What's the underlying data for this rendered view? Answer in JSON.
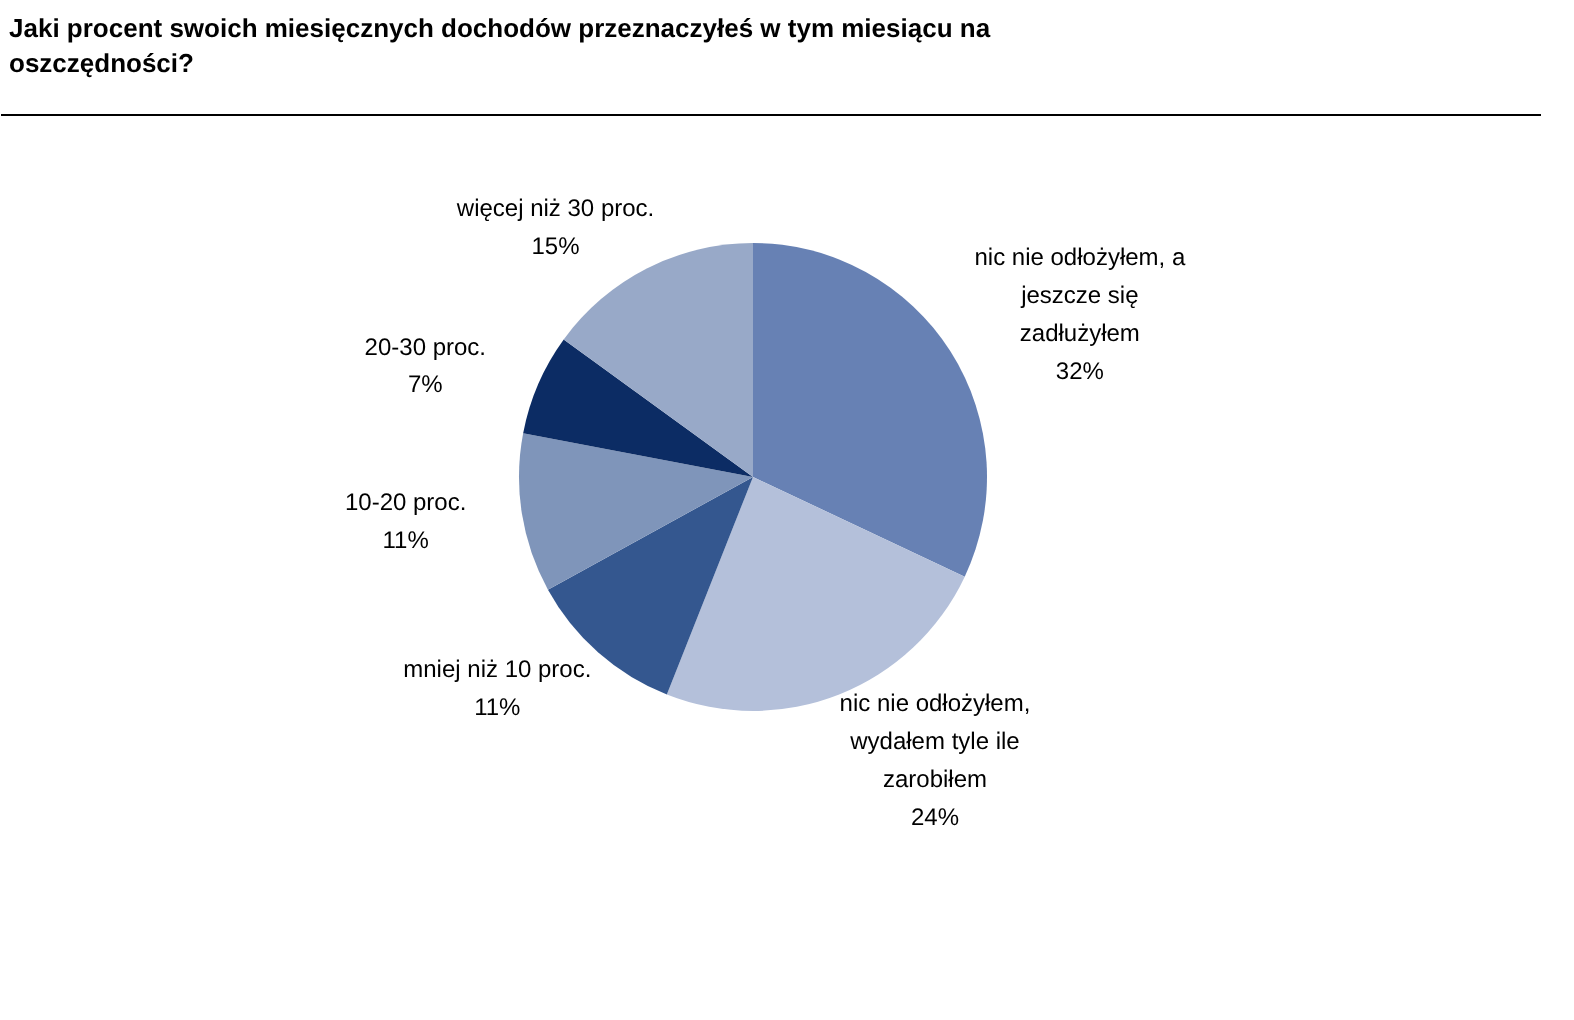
{
  "chart_data": {
    "type": "pie",
    "title": "Jaki procent swoich miesięcznych dochodów przeznaczyłeś w tym miesiącu na oszczędności?",
    "categories": [
      "nic nie odłożyłem, a jeszcze się zadłużyłem",
      "nic nie odłożyłem, wydałem tyle ile zarobiłem",
      "mniej niż 10 proc.",
      "10-20 proc.",
      "20-30 proc.",
      "więcej niż 30 proc."
    ],
    "values": [
      32,
      24,
      11,
      11,
      7,
      15
    ],
    "value_labels": [
      "32%",
      "24%",
      "11%",
      "11%",
      "7%",
      "15%"
    ],
    "colors": [
      "#6781b4",
      "#b4c0da",
      "#34578f",
      "#7f95ba",
      "#0c2c64",
      "#98a9c8"
    ]
  }
}
